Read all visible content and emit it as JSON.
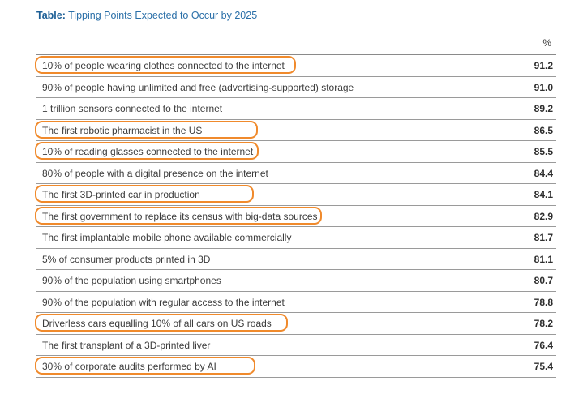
{
  "title": {
    "prefix": "Table:",
    "text": "Tipping Points Expected to Occur by 2025"
  },
  "unit_header": "%",
  "colors": {
    "title": "#2a6fa8",
    "highlight": "#f08a2c"
  },
  "chart_data": {
    "type": "table",
    "columns": [
      "",
      "%"
    ],
    "rows": [
      {
        "label": "10% of people wearing clothes connected to the internet",
        "value": "91.2",
        "highlighted": true
      },
      {
        "label": "90% of people having unlimited and free (advertising-supported) storage",
        "value": "91.0",
        "highlighted": false
      },
      {
        "label": "1 trillion sensors connected to the internet",
        "value": "89.2",
        "highlighted": false
      },
      {
        "label": "The first robotic pharmacist in the US",
        "value": "86.5",
        "highlighted": true
      },
      {
        "label": "10% of reading glasses connected to the internet",
        "value": "85.5",
        "highlighted": true
      },
      {
        "label": "80% of people with a digital presence on the internet",
        "value": "84.4",
        "highlighted": false
      },
      {
        "label": "The first 3D-printed car in production",
        "value": "84.1",
        "highlighted": true
      },
      {
        "label": "The first government to replace its census with big-data sources",
        "value": "82.9",
        "highlighted": true
      },
      {
        "label": "The first implantable mobile phone available commercially",
        "value": "81.7",
        "highlighted": false
      },
      {
        "label": "5% of consumer products printed in 3D",
        "value": "81.1",
        "highlighted": false
      },
      {
        "label": "90% of the population using smartphones",
        "value": "80.7",
        "highlighted": false
      },
      {
        "label": "90% of the population with regular access to the internet",
        "value": "78.8",
        "highlighted": false
      },
      {
        "label": "Driverless cars equalling 10% of all cars on US roads",
        "value": "78.2",
        "highlighted": true
      },
      {
        "label": "The first transplant of a 3D-printed liver",
        "value": "76.4",
        "highlighted": false
      },
      {
        "label": "30% of corporate audits performed by AI",
        "value": "75.4",
        "highlighted": true
      }
    ]
  }
}
